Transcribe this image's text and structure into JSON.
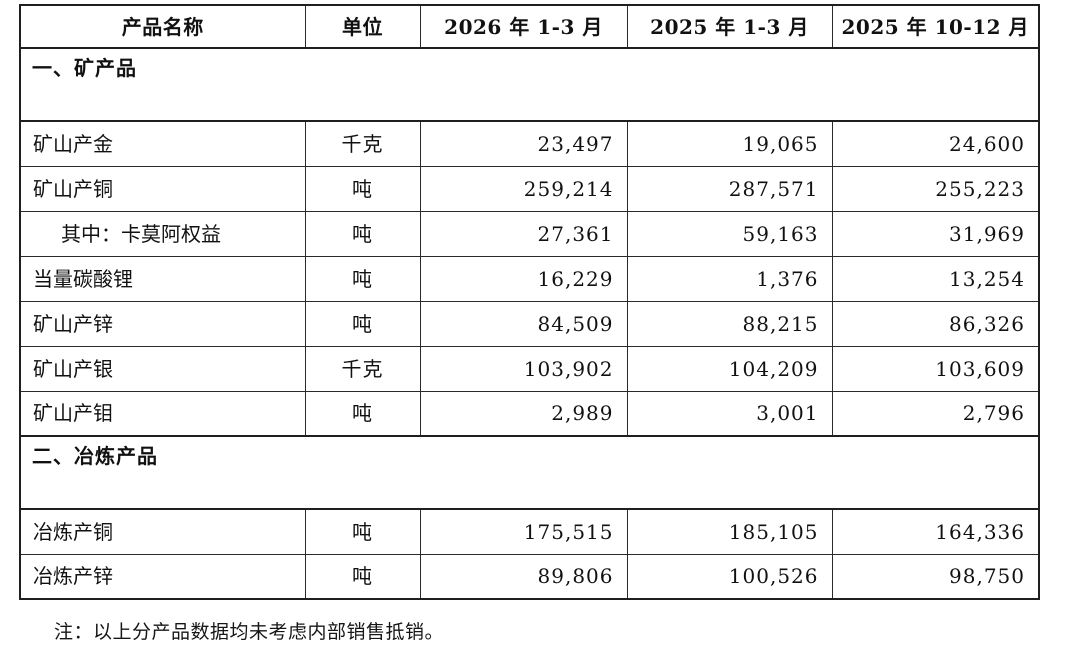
{
  "table": {
    "headers": {
      "product": "产品名称",
      "unit": "单位",
      "period_2026_q1": "2026 年 1-3 月",
      "period_2025_q1": "2025 年 1-3 月",
      "period_2025_q4": "2025 年 10-12 月"
    },
    "sections": [
      {
        "title": "一、矿产品",
        "rows": [
          {
            "name": "矿山产金",
            "unit": "千克",
            "values": [
              "23,497",
              "19,065",
              "24,600"
            ]
          },
          {
            "name": "矿山产铜",
            "unit": "吨",
            "values": [
              "259,214",
              "287,571",
              "255,223"
            ]
          },
          {
            "name": "其中：卡莫阿权益",
            "unit": "吨",
            "values": [
              "27,361",
              "59,163",
              "31,969"
            ]
          },
          {
            "name": "当量碳酸锂",
            "unit": "吨",
            "values": [
              "16,229",
              "1,376",
              "13,254"
            ]
          },
          {
            "name": "矿山产锌",
            "unit": "吨",
            "values": [
              "84,509",
              "88,215",
              "86,326"
            ]
          },
          {
            "name": "矿山产银",
            "unit": "千克",
            "values": [
              "103,902",
              "104,209",
              "103,609"
            ]
          },
          {
            "name": "矿山产钼",
            "unit": "吨",
            "values": [
              "2,989",
              "3,001",
              "2,796"
            ]
          }
        ]
      },
      {
        "title": "二、冶炼产品",
        "rows": [
          {
            "name": "冶炼产铜",
            "unit": "吨",
            "values": [
              "175,515",
              "185,105",
              "164,336"
            ]
          },
          {
            "name": "冶炼产锌",
            "unit": "吨",
            "values": [
              "89,806",
              "100,526",
              "98,750"
            ]
          }
        ]
      }
    ]
  },
  "note": "注：以上分产品数据均未考虑内部销售抵销。",
  "colors": {
    "border": "#1f1f1f",
    "text": "#111111",
    "background": "#ffffff"
  }
}
